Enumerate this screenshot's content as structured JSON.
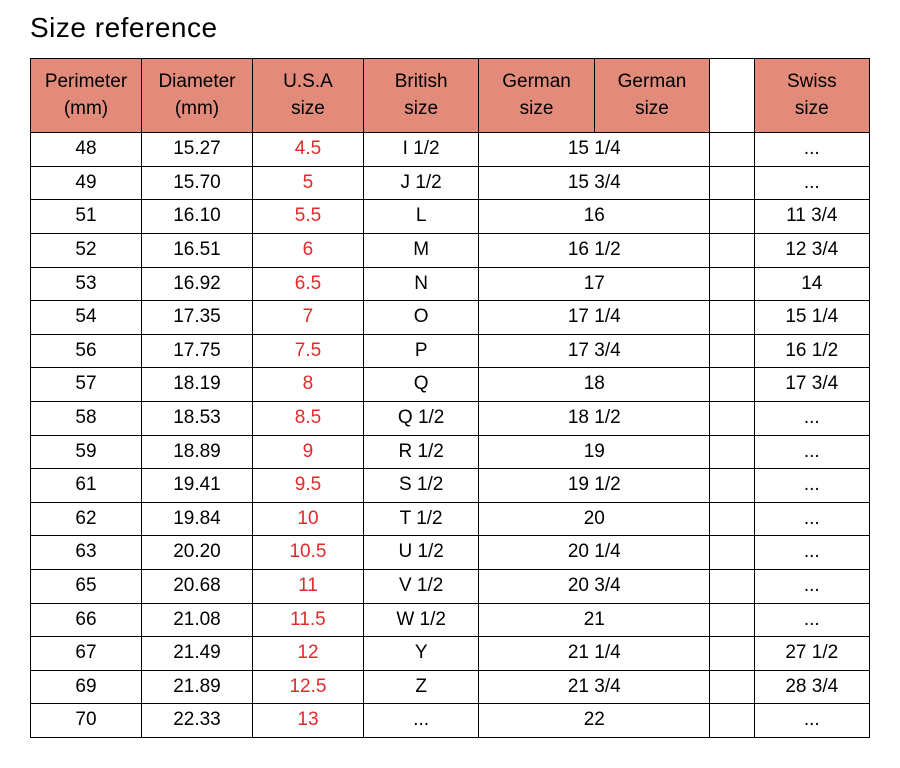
{
  "title": "Size reference",
  "table": {
    "type": "table",
    "background_color": "#ffffff",
    "border_color": "#000000",
    "header_bg": "#e38b7b",
    "usa_color": "#e32929",
    "text_color": "#000000",
    "font_size": 19,
    "columns": [
      {
        "id": "perimeter",
        "label_line1": "Perimeter",
        "label_line2": "(mm)"
      },
      {
        "id": "diameter",
        "label_line1": "Diameter",
        "label_line2": "(mm)"
      },
      {
        "id": "usa",
        "label_line1": "U.S.A",
        "label_line2": "size"
      },
      {
        "id": "british",
        "label_line1": "British",
        "label_line2": "size"
      },
      {
        "id": "german1",
        "label_line1": "German",
        "label_line2": "size"
      },
      {
        "id": "german2",
        "label_line1": "German",
        "label_line2": "size"
      },
      {
        "id": "swiss",
        "label_line1": "Swiss",
        "label_line2": "size"
      }
    ],
    "rows": [
      {
        "perimeter": "48",
        "diameter": "15.27",
        "usa": "4.5",
        "british": "I 1/2",
        "german": "15 1/4",
        "swiss": "..."
      },
      {
        "perimeter": "49",
        "diameter": "15.70",
        "usa": "5",
        "british": "J 1/2",
        "german": "15 3/4",
        "swiss": "..."
      },
      {
        "perimeter": "51",
        "diameter": "16.10",
        "usa": "5.5",
        "british": "L",
        "german": "16",
        "swiss": "11 3/4"
      },
      {
        "perimeter": "52",
        "diameter": "16.51",
        "usa": "6",
        "british": "M",
        "german": "16 1/2",
        "swiss": "12 3/4"
      },
      {
        "perimeter": "53",
        "diameter": "16.92",
        "usa": "6.5",
        "british": "N",
        "german": "17",
        "swiss": "14"
      },
      {
        "perimeter": "54",
        "diameter": "17.35",
        "usa": "7",
        "british": "O",
        "german": "17 1/4",
        "swiss": "15 1/4"
      },
      {
        "perimeter": "56",
        "diameter": "17.75",
        "usa": "7.5",
        "british": "P",
        "german": "17 3/4",
        "swiss": "16 1/2"
      },
      {
        "perimeter": "57",
        "diameter": "18.19",
        "usa": "8",
        "british": "Q",
        "german": "18",
        "swiss": "17 3/4"
      },
      {
        "perimeter": "58",
        "diameter": "18.53",
        "usa": "8.5",
        "british": "Q 1/2",
        "german": "18 1/2",
        "swiss": "..."
      },
      {
        "perimeter": "59",
        "diameter": "18.89",
        "usa": "9",
        "british": "R 1/2",
        "german": "19",
        "swiss": "..."
      },
      {
        "perimeter": "61",
        "diameter": "19.41",
        "usa": "9.5",
        "british": "S 1/2",
        "german": "19 1/2",
        "swiss": "..."
      },
      {
        "perimeter": "62",
        "diameter": "19.84",
        "usa": "10",
        "british": "T 1/2",
        "german": "20",
        "swiss": "..."
      },
      {
        "perimeter": "63",
        "diameter": "20.20",
        "usa": "10.5",
        "british": "U 1/2",
        "german": "20 1/4",
        "swiss": "..."
      },
      {
        "perimeter": "65",
        "diameter": "20.68",
        "usa": "11",
        "british": "V 1/2",
        "german": "20 3/4",
        "swiss": "..."
      },
      {
        "perimeter": "66",
        "diameter": "21.08",
        "usa": "11.5",
        "british": "W 1/2",
        "german": "21",
        "swiss": "..."
      },
      {
        "perimeter": "67",
        "diameter": "21.49",
        "usa": "12",
        "british": "Y",
        "german": "21 1/4",
        "swiss": "27 1/2"
      },
      {
        "perimeter": "69",
        "diameter": "21.89",
        "usa": "12.5",
        "british": "Z",
        "german": "21 3/4",
        "swiss": "28 3/4"
      },
      {
        "perimeter": "70",
        "diameter": "22.33",
        "usa": "13",
        "british": "...",
        "german": "22",
        "swiss": "..."
      }
    ]
  }
}
